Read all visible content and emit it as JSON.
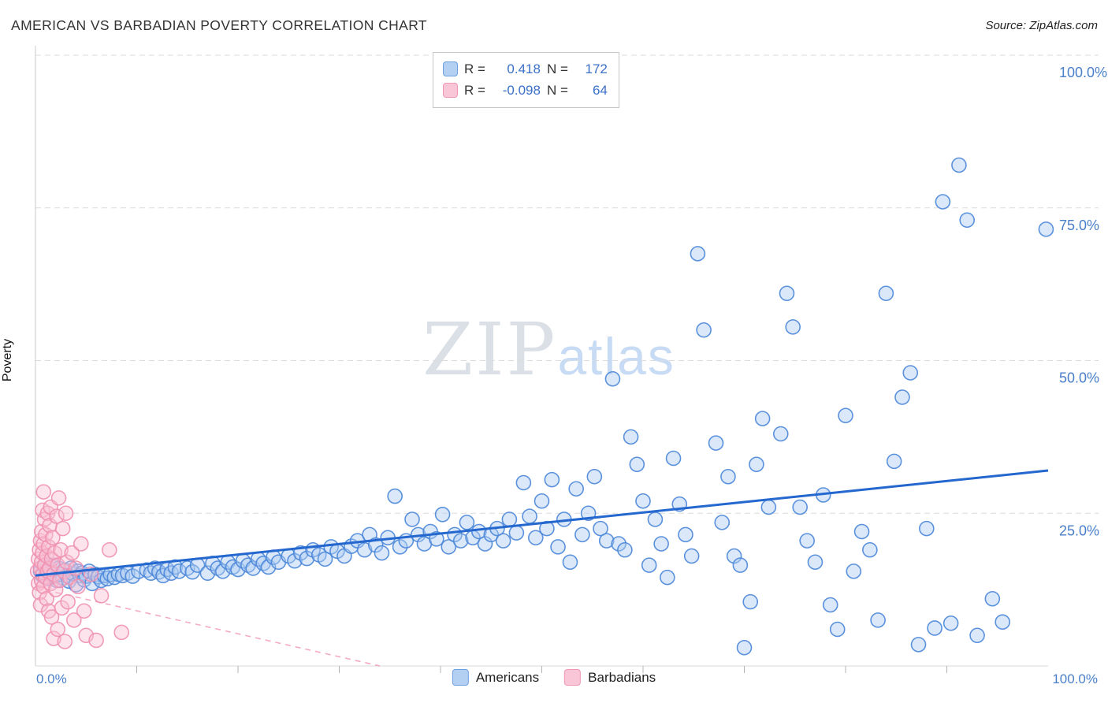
{
  "chart": {
    "title": "AMERICAN VS BARBADIAN POVERTY CORRELATION CHART",
    "source": "Source: ZipAtlas.com",
    "watermark_zip": "ZIP",
    "watermark_atlas": "atlas"
  },
  "stats_legend": {
    "rows": [
      {
        "r_label": "R =",
        "r_value": "0.418",
        "n_label": "N =",
        "n_value": "172"
      },
      {
        "r_label": "R =",
        "r_value": "-0.098",
        "n_label": "N =",
        "n_value": "64"
      }
    ]
  },
  "bottom_legend": {
    "items": [
      {
        "label": "Americans"
      },
      {
        "label": "Barbadians"
      }
    ]
  },
  "chart_data": {
    "type": "scatter",
    "title": "AMERICAN VS BARBADIAN POVERTY CORRELATION CHART",
    "xlabel": "",
    "ylabel": "Poverty",
    "xlim": [
      0,
      1.0
    ],
    "ylim": [
      0,
      1.0
    ],
    "grid": "horizontal-dashed",
    "legend_position": "bottom-center",
    "x_tick_labels": [
      "0.0%",
      "100.0%"
    ],
    "y_tick_values": [
      0.25,
      0.5,
      0.75,
      1.0
    ],
    "y_tick_labels": [
      "25.0%",
      "50.0%",
      "75.0%",
      "100.0%"
    ],
    "axis_label_color": "#4a7fc9",
    "series": [
      {
        "name": "Americans",
        "R": 0.418,
        "N": 172,
        "color": "#aecdf2",
        "edge": "#4a86d8",
        "trend": {
          "x": [
            0.0,
            1.0
          ],
          "y": [
            0.148,
            0.32
          ]
        },
        "points": [
          [
            0.005,
            0.155
          ],
          [
            0.007,
            0.148
          ],
          [
            0.009,
            0.162
          ],
          [
            0.011,
            0.15
          ],
          [
            0.013,
            0.143
          ],
          [
            0.015,
            0.152
          ],
          [
            0.017,
            0.165
          ],
          [
            0.019,
            0.147
          ],
          [
            0.021,
            0.14
          ],
          [
            0.023,
            0.16
          ],
          [
            0.025,
            0.15
          ],
          [
            0.027,
            0.144
          ],
          [
            0.029,
            0.157
          ],
          [
            0.031,
            0.148
          ],
          [
            0.033,
            0.139
          ],
          [
            0.035,
            0.16
          ],
          [
            0.037,
            0.151
          ],
          [
            0.04,
            0.133
          ],
          [
            0.042,
            0.155
          ],
          [
            0.044,
            0.148
          ],
          [
            0.046,
            0.152
          ],
          [
            0.048,
            0.141
          ],
          [
            0.05,
            0.147
          ],
          [
            0.053,
            0.155
          ],
          [
            0.056,
            0.135
          ],
          [
            0.059,
            0.15
          ],
          [
            0.062,
            0.146
          ],
          [
            0.065,
            0.14
          ],
          [
            0.068,
            0.148
          ],
          [
            0.071,
            0.143
          ],
          [
            0.074,
            0.15
          ],
          [
            0.078,
            0.145
          ],
          [
            0.082,
            0.15
          ],
          [
            0.086,
            0.148
          ],
          [
            0.091,
            0.152
          ],
          [
            0.096,
            0.147
          ],
          [
            0.102,
            0.155
          ],
          [
            0.11,
            0.157
          ],
          [
            0.114,
            0.152
          ],
          [
            0.118,
            0.16
          ],
          [
            0.122,
            0.154
          ],
          [
            0.126,
            0.148
          ],
          [
            0.13,
            0.158
          ],
          [
            0.134,
            0.152
          ],
          [
            0.138,
            0.162
          ],
          [
            0.142,
            0.155
          ],
          [
            0.15,
            0.16
          ],
          [
            0.155,
            0.154
          ],
          [
            0.16,
            0.165
          ],
          [
            0.17,
            0.152
          ],
          [
            0.175,
            0.168
          ],
          [
            0.18,
            0.16
          ],
          [
            0.185,
            0.155
          ],
          [
            0.19,
            0.17
          ],
          [
            0.195,
            0.162
          ],
          [
            0.2,
            0.158
          ],
          [
            0.205,
            0.172
          ],
          [
            0.21,
            0.165
          ],
          [
            0.215,
            0.16
          ],
          [
            0.22,
            0.175
          ],
          [
            0.225,
            0.168
          ],
          [
            0.23,
            0.162
          ],
          [
            0.235,
            0.178
          ],
          [
            0.24,
            0.17
          ],
          [
            0.25,
            0.18
          ],
          [
            0.256,
            0.172
          ],
          [
            0.262,
            0.185
          ],
          [
            0.268,
            0.176
          ],
          [
            0.274,
            0.19
          ],
          [
            0.28,
            0.182
          ],
          [
            0.286,
            0.175
          ],
          [
            0.292,
            0.195
          ],
          [
            0.298,
            0.188
          ],
          [
            0.305,
            0.18
          ],
          [
            0.312,
            0.196
          ],
          [
            0.318,
            0.205
          ],
          [
            0.325,
            0.19
          ],
          [
            0.33,
            0.215
          ],
          [
            0.336,
            0.198
          ],
          [
            0.342,
            0.185
          ],
          [
            0.348,
            0.21
          ],
          [
            0.355,
            0.278
          ],
          [
            0.36,
            0.195
          ],
          [
            0.366,
            0.205
          ],
          [
            0.372,
            0.24
          ],
          [
            0.378,
            0.215
          ],
          [
            0.384,
            0.2
          ],
          [
            0.39,
            0.22
          ],
          [
            0.396,
            0.208
          ],
          [
            0.402,
            0.248
          ],
          [
            0.408,
            0.195
          ],
          [
            0.414,
            0.215
          ],
          [
            0.42,
            0.205
          ],
          [
            0.426,
            0.235
          ],
          [
            0.432,
            0.21
          ],
          [
            0.438,
            0.22
          ],
          [
            0.444,
            0.2
          ],
          [
            0.45,
            0.215
          ],
          [
            0.456,
            0.225
          ],
          [
            0.462,
            0.205
          ],
          [
            0.468,
            0.24
          ],
          [
            0.475,
            0.218
          ],
          [
            0.482,
            0.3
          ],
          [
            0.488,
            0.245
          ],
          [
            0.494,
            0.21
          ],
          [
            0.5,
            0.27
          ],
          [
            0.505,
            0.225
          ],
          [
            0.51,
            0.305
          ],
          [
            0.516,
            0.195
          ],
          [
            0.522,
            0.24
          ],
          [
            0.528,
            0.17
          ],
          [
            0.534,
            0.29
          ],
          [
            0.54,
            0.215
          ],
          [
            0.546,
            0.25
          ],
          [
            0.552,
            0.31
          ],
          [
            0.558,
            0.225
          ],
          [
            0.564,
            0.205
          ],
          [
            0.57,
            0.47
          ],
          [
            0.576,
            0.2
          ],
          [
            0.582,
            0.19
          ],
          [
            0.588,
            0.375
          ],
          [
            0.594,
            0.33
          ],
          [
            0.6,
            0.27
          ],
          [
            0.606,
            0.165
          ],
          [
            0.612,
            0.24
          ],
          [
            0.618,
            0.2
          ],
          [
            0.624,
            0.145
          ],
          [
            0.63,
            0.34
          ],
          [
            0.636,
            0.265
          ],
          [
            0.642,
            0.215
          ],
          [
            0.648,
            0.18
          ],
          [
            0.654,
            0.675
          ],
          [
            0.66,
            0.55
          ],
          [
            0.672,
            0.365
          ],
          [
            0.678,
            0.235
          ],
          [
            0.684,
            0.31
          ],
          [
            0.69,
            0.18
          ],
          [
            0.696,
            0.165
          ],
          [
            0.7,
            0.03
          ],
          [
            0.706,
            0.105
          ],
          [
            0.712,
            0.33
          ],
          [
            0.718,
            0.405
          ],
          [
            0.724,
            0.26
          ],
          [
            0.736,
            0.38
          ],
          [
            0.742,
            0.61
          ],
          [
            0.748,
            0.555
          ],
          [
            0.755,
            0.26
          ],
          [
            0.762,
            0.205
          ],
          [
            0.77,
            0.17
          ],
          [
            0.778,
            0.28
          ],
          [
            0.785,
            0.1
          ],
          [
            0.792,
            0.06
          ],
          [
            0.8,
            0.41
          ],
          [
            0.808,
            0.155
          ],
          [
            0.816,
            0.22
          ],
          [
            0.824,
            0.19
          ],
          [
            0.832,
            0.075
          ],
          [
            0.84,
            0.61
          ],
          [
            0.848,
            0.335
          ],
          [
            0.856,
            0.44
          ],
          [
            0.864,
            0.48
          ],
          [
            0.872,
            0.035
          ],
          [
            0.88,
            0.225
          ],
          [
            0.888,
            0.062
          ],
          [
            0.896,
            0.76
          ],
          [
            0.904,
            0.07
          ],
          [
            0.912,
            0.82
          ],
          [
            0.92,
            0.73
          ],
          [
            0.93,
            0.05
          ],
          [
            0.945,
            0.11
          ],
          [
            0.955,
            0.072
          ],
          [
            0.998,
            0.715
          ]
        ]
      },
      {
        "name": "Barbadians",
        "R": -0.098,
        "N": 64,
        "color": "#f9c2d4",
        "edge": "#f090b0",
        "trend": {
          "x": [
            0.0,
            0.34
          ],
          "y": [
            0.128,
            0.0
          ]
        },
        "points": [
          [
            0.002,
            0.155
          ],
          [
            0.003,
            0.175
          ],
          [
            0.003,
            0.135
          ],
          [
            0.004,
            0.19
          ],
          [
            0.004,
            0.12
          ],
          [
            0.005,
            0.205
          ],
          [
            0.005,
            0.16
          ],
          [
            0.005,
            0.1
          ],
          [
            0.006,
            0.22
          ],
          [
            0.006,
            0.17
          ],
          [
            0.006,
            0.14
          ],
          [
            0.007,
            0.255
          ],
          [
            0.007,
            0.185
          ],
          [
            0.007,
            0.15
          ],
          [
            0.008,
            0.285
          ],
          [
            0.008,
            0.2
          ],
          [
            0.008,
            0.13
          ],
          [
            0.009,
            0.24
          ],
          [
            0.009,
            0.165
          ],
          [
            0.01,
            0.145
          ],
          [
            0.01,
            0.215
          ],
          [
            0.011,
            0.18
          ],
          [
            0.011,
            0.11
          ],
          [
            0.012,
            0.25
          ],
          [
            0.012,
            0.155
          ],
          [
            0.013,
            0.195
          ],
          [
            0.013,
            0.09
          ],
          [
            0.014,
            0.23
          ],
          [
            0.014,
            0.16
          ],
          [
            0.015,
            0.135
          ],
          [
            0.015,
            0.26
          ],
          [
            0.016,
            0.175
          ],
          [
            0.016,
            0.08
          ],
          [
            0.017,
            0.21
          ],
          [
            0.018,
            0.15
          ],
          [
            0.018,
            0.045
          ],
          [
            0.019,
            0.185
          ],
          [
            0.02,
            0.125
          ],
          [
            0.021,
            0.245
          ],
          [
            0.022,
            0.165
          ],
          [
            0.022,
            0.06
          ],
          [
            0.023,
            0.275
          ],
          [
            0.024,
            0.14
          ],
          [
            0.025,
            0.19
          ],
          [
            0.026,
            0.095
          ],
          [
            0.027,
            0.225
          ],
          [
            0.028,
            0.155
          ],
          [
            0.029,
            0.04
          ],
          [
            0.03,
            0.25
          ],
          [
            0.031,
            0.17
          ],
          [
            0.032,
            0.105
          ],
          [
            0.034,
            0.145
          ],
          [
            0.036,
            0.185
          ],
          [
            0.038,
            0.075
          ],
          [
            0.04,
            0.16
          ],
          [
            0.042,
            0.13
          ],
          [
            0.045,
            0.2
          ],
          [
            0.048,
            0.09
          ],
          [
            0.05,
            0.05
          ],
          [
            0.055,
            0.15
          ],
          [
            0.06,
            0.042
          ],
          [
            0.065,
            0.115
          ],
          [
            0.073,
            0.19
          ],
          [
            0.085,
            0.055
          ]
        ]
      }
    ]
  }
}
